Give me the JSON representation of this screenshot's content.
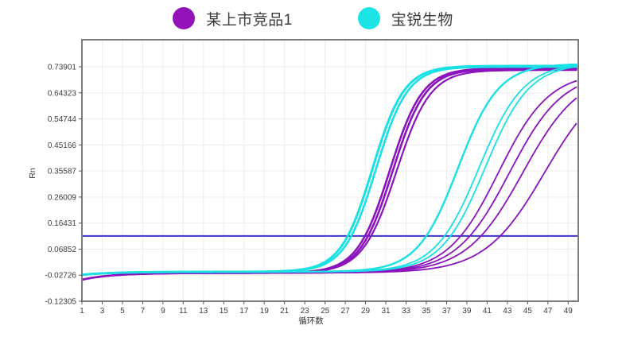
{
  "legend": {
    "items": [
      {
        "label": "某上市竞品1",
        "color": "#9213b8"
      },
      {
        "label": "宝锐生物",
        "color": "#1ce4e6"
      }
    ]
  },
  "chart_data": {
    "type": "line",
    "title": "",
    "xlabel": "循环数",
    "ylabel": "Rn",
    "xlim": [
      1,
      50
    ],
    "ylim": [
      -0.12305,
      0.8385
    ],
    "grid": true,
    "x_ticks": [
      1,
      3,
      5,
      7,
      9,
      11,
      13,
      15,
      17,
      19,
      21,
      23,
      25,
      27,
      29,
      31,
      33,
      35,
      37,
      39,
      41,
      43,
      45,
      47,
      49
    ],
    "y_tick_labels": [
      "0.73901",
      "0.64323",
      "0.54744",
      "0.45166",
      "0.35587",
      "0.26009",
      "0.16431",
      "0.06852",
      "-0.02726",
      "-0.12305"
    ],
    "threshold": {
      "value": 0.117,
      "color": "#3d35cc"
    },
    "curve_model": "rn(c) = base_end + (base_start - base_end)*exp(-(c-1)/3) + (plateau - base_end)/(1 + exp(-k*(c - mid))), mid solved so curve crosses threshold at ct",
    "series": [
      {
        "name": "某上市竞品1",
        "color": "#8a13bc",
        "base_start": -0.044,
        "base_end": -0.019,
        "curves": [
          {
            "ct": 28.95,
            "k": 0.62,
            "plateau": 0.734,
            "width": 2.6
          },
          {
            "ct": 29.25,
            "k": 0.62,
            "plateau": 0.731,
            "width": 2.6
          },
          {
            "ct": 29.55,
            "k": 0.6,
            "plateau": 0.727,
            "width": 2.2
          },
          {
            "ct": 38.4,
            "k": 0.4,
            "plateau": 0.72,
            "width": 1.8
          },
          {
            "ct": 39.3,
            "k": 0.38,
            "plateau": 0.72,
            "width": 1.8
          },
          {
            "ct": 40.4,
            "k": 0.36,
            "plateau": 0.72,
            "width": 1.8
          },
          {
            "ct": 42.3,
            "k": 0.34,
            "plateau": 0.72,
            "width": 1.8
          }
        ]
      },
      {
        "name": "宝锐生物",
        "color": "#19e0e4",
        "base_start": -0.026,
        "base_end": -0.015,
        "curves": [
          {
            "ct": 27.25,
            "k": 0.64,
            "plateau": 0.742,
            "width": 3.0
          },
          {
            "ct": 27.6,
            "k": 0.64,
            "plateau": 0.739,
            "width": 2.6
          },
          {
            "ct": 35.0,
            "k": 0.5,
            "plateau": 0.75,
            "width": 2.4
          },
          {
            "ct": 36.8,
            "k": 0.46,
            "plateau": 0.752,
            "width": 1.8
          },
          {
            "ct": 37.4,
            "k": 0.46,
            "plateau": 0.752,
            "width": 1.8
          }
        ]
      }
    ]
  }
}
